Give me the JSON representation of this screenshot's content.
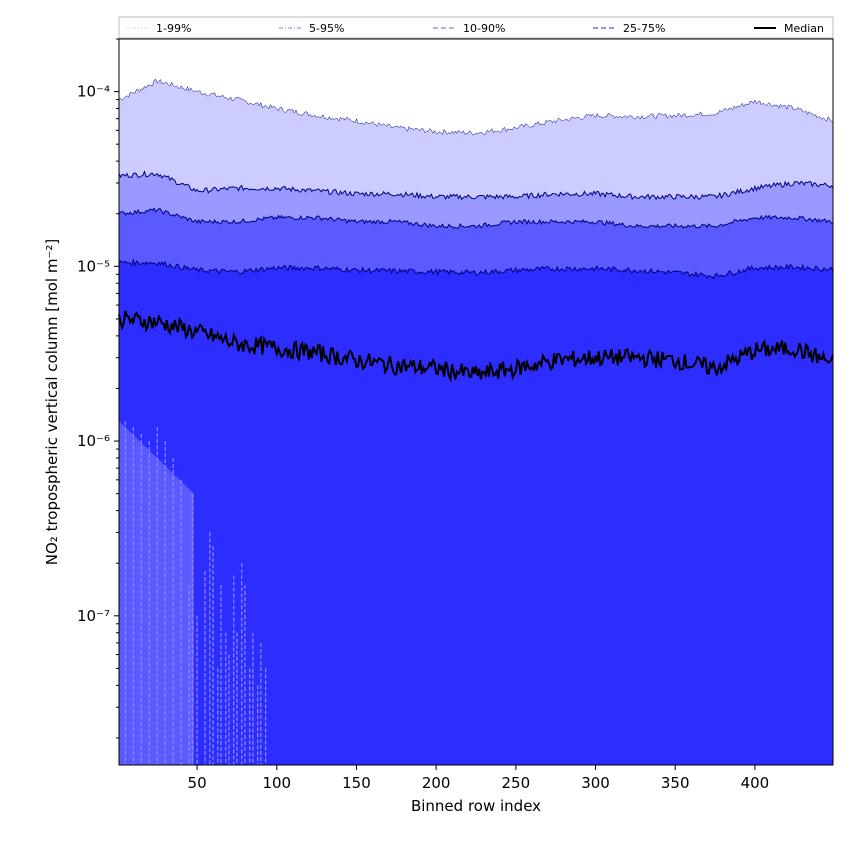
{
  "chart_data": {
    "type": "area",
    "xlabel": "Binned row index",
    "ylabel": "NO₂ tropospheric vertical column [mol m⁻²]",
    "yscale": "log",
    "xlim": [
      1,
      449
    ],
    "ylim": [
      1.4e-08,
      0.0002
    ],
    "x_ticks": [
      50,
      100,
      150,
      200,
      250,
      300,
      350,
      400
    ],
    "y_ticks": [
      {
        "value": 1e-07,
        "label": "10⁻⁷"
      },
      {
        "value": 1e-06,
        "label": "10⁻⁶"
      },
      {
        "value": 1e-05,
        "label": "10⁻⁵"
      },
      {
        "value": 0.0001,
        "label": "10⁻⁴"
      }
    ],
    "legend": {
      "placement": "top",
      "entries": [
        {
          "label": "1-99%",
          "color": "#ccccff",
          "style": "dotted"
        },
        {
          "label": "5-95%",
          "color": "#9999ff",
          "style": "dashdot"
        },
        {
          "label": "10-90%",
          "color": "#8080ff",
          "style": "dashed"
        },
        {
          "label": "25-75%",
          "color": "#5555ff",
          "style": "dashed"
        },
        {
          "label": "Median",
          "color": "#000000",
          "style": "solid"
        }
      ]
    },
    "x": [
      1,
      25,
      50,
      75,
      100,
      125,
      150,
      175,
      200,
      225,
      250,
      275,
      300,
      325,
      350,
      375,
      400,
      425,
      449
    ],
    "series": [
      {
        "name": "1-99%",
        "fill": "#ccccff",
        "lower_values": [
          1.4e-08,
          1.4e-08,
          1.4e-08,
          1.4e-08,
          1.4e-08,
          1.4e-08,
          1.4e-08,
          1.4e-08,
          1.4e-08,
          1.4e-08,
          1.4e-08,
          1.4e-08,
          1.4e-08,
          1.4e-08,
          1.4e-08,
          1.4e-08,
          1.4e-08,
          1.4e-08,
          1.4e-08
        ],
        "upper_values": [
          9e-05,
          0.000115,
          0.0001,
          9e-05,
          8e-05,
          7.3e-05,
          6.8e-05,
          6.2e-05,
          5.9e-05,
          5.8e-05,
          6.2e-05,
          6.8e-05,
          7.3e-05,
          7.2e-05,
          7.3e-05,
          7.5e-05,
          8.8e-05,
          8e-05,
          6.8e-05
        ]
      },
      {
        "name": "5-95%",
        "fill": "#9999ff",
        "lower_values": [
          1.4e-08,
          1.4e-08,
          1.4e-08,
          1.4e-08,
          1.4e-08,
          1.4e-08,
          1.4e-08,
          1.4e-08,
          1.4e-08,
          1.4e-08,
          1.4e-08,
          1.4e-08,
          1.4e-08,
          1.4e-08,
          1.4e-08,
          1.4e-08,
          1.4e-08,
          1.4e-08,
          1.4e-08
        ],
        "upper_values": [
          3.3e-05,
          3.4e-05,
          2.7e-05,
          2.8e-05,
          2.8e-05,
          2.7e-05,
          2.6e-05,
          2.6e-05,
          2.5e-05,
          2.5e-05,
          2.5e-05,
          2.6e-05,
          2.6e-05,
          2.5e-05,
          2.5e-05,
          2.5e-05,
          2.8e-05,
          3e-05,
          2.9e-05
        ]
      },
      {
        "name": "10-90%",
        "fill": "#5a5aff",
        "lower_values": [
          1.4e-08,
          1.3e-06,
          1.4e-08,
          1.4e-08,
          1.4e-08,
          1.4e-08,
          1.4e-08,
          1.4e-08,
          1.4e-08,
          1.4e-08,
          1.4e-08,
          1.4e-08,
          1.4e-08,
          1.4e-08,
          1.4e-08,
          1.4e-08,
          1.4e-08,
          1.4e-08,
          1.4e-08
        ],
        "upper_values": [
          2e-05,
          2.1e-05,
          1.8e-05,
          1.8e-05,
          1.9e-05,
          1.9e-05,
          1.8e-05,
          1.8e-05,
          1.7e-05,
          1.7e-05,
          1.8e-05,
          1.8e-05,
          1.8e-05,
          1.7e-05,
          1.7e-05,
          1.7e-05,
          1.9e-05,
          1.9e-05,
          1.8e-05
        ]
      },
      {
        "name": "25-75%",
        "fill": "#2d2dff",
        "lower_values": [
          1.4e-08,
          1.4e-08,
          1.4e-08,
          1.4e-08,
          1.4e-08,
          1.4e-08,
          1.4e-08,
          1.4e-08,
          1.4e-08,
          1.4e-08,
          1.4e-08,
          1.4e-08,
          1.4e-08,
          1.4e-08,
          1.4e-08,
          1.4e-08,
          1.4e-08,
          1.4e-08,
          1.4e-08
        ],
        "upper_values": [
          1.05e-05,
          1.05e-05,
          9.5e-06,
          9.3e-06,
          9.8e-06,
          9.8e-06,
          9.5e-06,
          9.4e-06,
          9.3e-06,
          9.2e-06,
          9.5e-06,
          9.7e-06,
          9.7e-06,
          9.5e-06,
          9.2e-06,
          8.8e-06,
          9.8e-06,
          9.9e-06,
          9.6e-06
        ]
      },
      {
        "name": "Median",
        "color": "#000000",
        "values": [
          5e-06,
          4.8e-06,
          4.2e-06,
          3.6e-06,
          3.4e-06,
          3.2e-06,
          2.9e-06,
          2.7e-06,
          2.6e-06,
          2.4e-06,
          2.6e-06,
          2.9e-06,
          3e-06,
          3e-06,
          2.9e-06,
          2.6e-06,
          3.3e-06,
          3.4e-06,
          2.8e-06
        ]
      }
    ],
    "lower_dashed_lines": {
      "color": "#8c8cff",
      "x": [
        5,
        10,
        15,
        20,
        25,
        30,
        35,
        40,
        45,
        47,
        50,
        55,
        58,
        60,
        63,
        65,
        68,
        70,
        73,
        75,
        78,
        80,
        83,
        85,
        88,
        90,
        93
      ],
      "values": [
        1.3e-06,
        1.2e-06,
        1.1e-06,
        1e-06,
        1.2e-06,
        1e-06,
        8e-07,
        6e-07,
        1.5e-07,
        5e-07,
        1e-07,
        1.8e-07,
        3e-07,
        2.5e-07,
        5e-08,
        1.5e-07,
        8e-08,
        6e-08,
        1.7e-07,
        8e-08,
        2e-07,
        1.5e-07,
        5e-08,
        8e-08,
        4e-08,
        7e-08,
        5e-08
      ]
    },
    "grid": false
  }
}
